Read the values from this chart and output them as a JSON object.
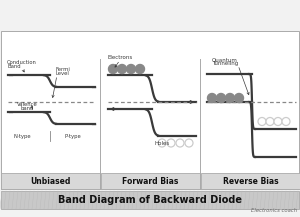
{
  "title": "Band Diagram of Backward Diode",
  "subtitle": "Electronics coach",
  "labels": [
    "Unbiased",
    "Forward Bias",
    "Reverse Bias"
  ],
  "bg_color": "#f2f2f2",
  "panel_bg": "#ffffff",
  "label_bg": "#d0d0d0",
  "title_bg": "#c8c8c8",
  "line_color": "#3a3a3a",
  "dashed_color": "#888888",
  "dot_fill": "#888888",
  "dot_empty": "#cccccc",
  "text_color": "#3a3a3a"
}
